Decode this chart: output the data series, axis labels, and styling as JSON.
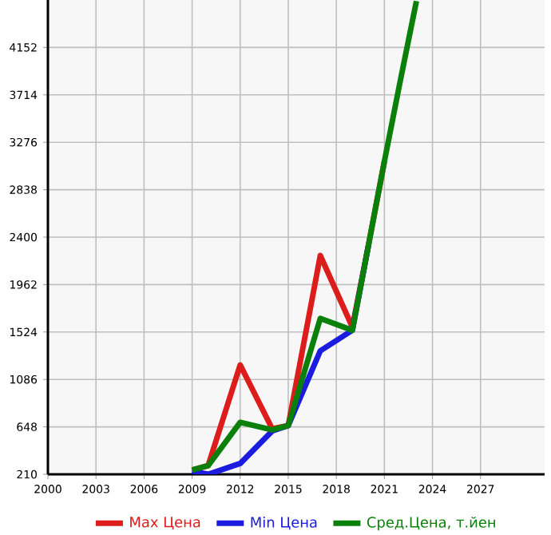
{
  "chart_data": {
    "type": "line",
    "x": [
      2009,
      2010,
      2012,
      2014,
      2015,
      2017,
      2019,
      2020,
      2021,
      2022,
      2023
    ],
    "series": [
      {
        "name": "Max Цена",
        "color": "#dd1c1c",
        "values": [
          250,
          290,
          1220,
          630,
          660,
          2230,
          1570,
          2320,
          3100,
          null,
          null
        ]
      },
      {
        "name": "Min Цена",
        "color": "#1c1ce0",
        "values": [
          240,
          210,
          310,
          610,
          660,
          1350,
          1540,
          2320,
          null,
          null,
          null
        ]
      },
      {
        "name": "Сред.Цена, т.йен",
        "color": "#0a800a",
        "values": [
          250,
          290,
          690,
          620,
          660,
          1650,
          1540,
          2320,
          3100,
          3850,
          4580
        ]
      }
    ],
    "xlim": [
      2000,
      2031
    ],
    "xticks": [
      2000,
      2003,
      2006,
      2009,
      2012,
      2015,
      2018,
      2021,
      2024,
      2027
    ],
    "ylim": [
      210,
      4590
    ],
    "yticks": [
      210,
      648,
      1086,
      1524,
      1962,
      2400,
      2838,
      3276,
      3714,
      4152
    ],
    "grid": true,
    "legend": "bottom",
    "marker": "none",
    "line_style": "solid"
  }
}
